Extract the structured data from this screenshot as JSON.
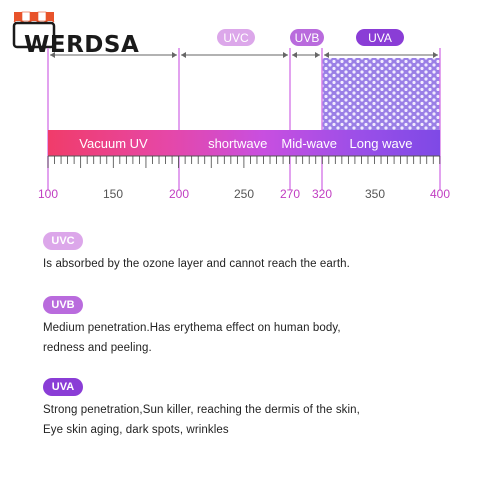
{
  "brand": {
    "name": "WERDSA"
  },
  "diagram": {
    "axis_ticks": [
      "100",
      "150",
      "200",
      "250",
      "270",
      "320",
      "350",
      "400"
    ],
    "bands": [
      {
        "label": "UVC",
        "from": 100,
        "to": 200,
        "color": "#dca7ea"
      },
      {
        "label": "UVB",
        "from": 200,
        "to": 320,
        "color": "#b96bdd"
      },
      {
        "label": "UVA",
        "from": 320,
        "to": 400,
        "color": "#8a3dd6"
      }
    ],
    "segments": [
      {
        "label": "Vacuum UV",
        "from": 100,
        "to": 200
      },
      {
        "label": "shortwave",
        "from": 200,
        "to": 280
      },
      {
        "label": "Mid-wave",
        "from": 280,
        "to": 320
      },
      {
        "label": "Long wave",
        "from": 320,
        "to": 400
      }
    ]
  },
  "descriptions": [
    {
      "badge": "UVC",
      "color": "#dca7ea",
      "lines": [
        "Is absorbed by the ozone layer and cannot reach the earth."
      ]
    },
    {
      "badge": "UVB",
      "color": "#b96bdd",
      "lines": [
        "Medium penetration.Has erythema effect on human body,",
        "redness and peeling."
      ]
    },
    {
      "badge": "UVA",
      "color": "#8a3dd6",
      "lines": [
        "Strong penetration,Sun killer, reaching the dermis of the skin,",
        "Eye skin aging, dark spots, wrinkles"
      ]
    }
  ]
}
